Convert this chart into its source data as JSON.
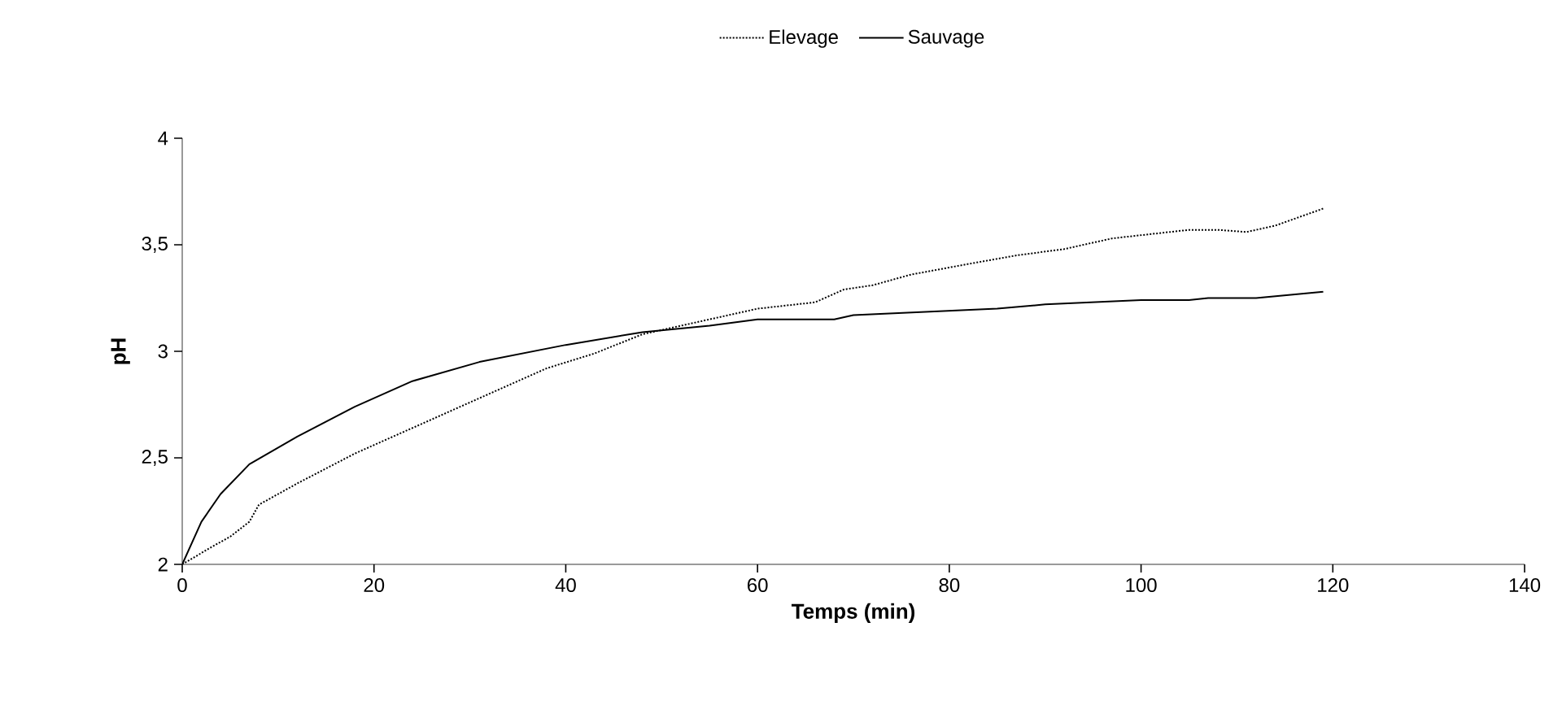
{
  "chart_data": {
    "type": "line",
    "xlabel": "Temps (min)",
    "ylabel": "pH",
    "xlim": [
      0,
      140
    ],
    "xticks": [
      0,
      20,
      40,
      60,
      80,
      100,
      120,
      140
    ],
    "ylim": [
      2,
      4
    ],
    "yticks": [
      2,
      {
        "value": 2.5,
        "label": "2,5"
      },
      3,
      {
        "value": 3.5,
        "label": "3,5"
      },
      4
    ],
    "legend": "top",
    "grid": false,
    "marker": "none",
    "series": [
      {
        "name": "Elevage",
        "color": "#000000",
        "line_style": "dotted",
        "x": [
          0,
          3,
          5,
          7,
          8,
          12,
          18,
          25,
          31,
          38,
          43,
          48,
          55,
          60,
          66,
          69,
          72,
          76,
          82,
          87,
          92,
          97,
          101,
          105,
          108,
          111,
          114,
          119
        ],
        "values": [
          2.0,
          2.08,
          2.13,
          2.2,
          2.28,
          2.38,
          2.52,
          2.66,
          2.78,
          2.92,
          2.99,
          3.08,
          3.15,
          3.2,
          3.23,
          3.29,
          3.31,
          3.36,
          3.41,
          3.45,
          3.48,
          3.53,
          3.55,
          3.57,
          3.57,
          3.56,
          3.59,
          3.67
        ]
      },
      {
        "name": "Sauvage",
        "color": "#000000",
        "line_style": "solid",
        "x": [
          0,
          1,
          2,
          4,
          7,
          12,
          18,
          24,
          31,
          40,
          48,
          55,
          60,
          68,
          70,
          75,
          80,
          85,
          90,
          100,
          105,
          107,
          112,
          119
        ],
        "values": [
          2.0,
          2.1,
          2.2,
          2.33,
          2.47,
          2.6,
          2.74,
          2.86,
          2.95,
          3.03,
          3.09,
          3.12,
          3.15,
          3.15,
          3.17,
          3.18,
          3.19,
          3.2,
          3.22,
          3.24,
          3.24,
          3.25,
          3.25,
          3.28
        ]
      }
    ]
  }
}
